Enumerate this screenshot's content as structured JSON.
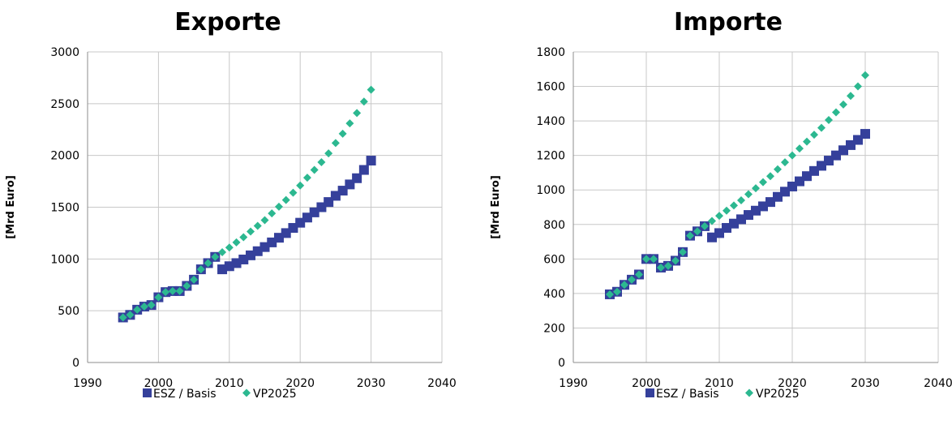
{
  "colors": {
    "esz": "#35409b",
    "vp": "#2cb890",
    "grid": "#c8c8c8",
    "axis": "#8c8c8c"
  },
  "chart_data": [
    {
      "type": "scatter",
      "title": "Exporte",
      "xlabel": "",
      "ylabel": "[Mrd Euro]",
      "xlim": [
        1990,
        2040
      ],
      "ylim": [
        0,
        3000
      ],
      "xticks": [
        1990,
        2000,
        2010,
        2020,
        2030,
        2040
      ],
      "yticks": [
        0,
        500,
        1000,
        1500,
        2000,
        2500,
        3000
      ],
      "grid": true,
      "legend": "bottom",
      "series": [
        {
          "name": "ESZ / Basis",
          "marker": "square",
          "x": [
            1995,
            1996,
            1997,
            1998,
            1999,
            2000,
            2001,
            2002,
            2003,
            2004,
            2005,
            2006,
            2007,
            2008,
            2009,
            2010,
            2011,
            2012,
            2013,
            2014,
            2015,
            2016,
            2017,
            2018,
            2019,
            2020,
            2021,
            2022,
            2023,
            2024,
            2025,
            2026,
            2027,
            2028,
            2029,
            2030
          ],
          "y": [
            435,
            460,
            510,
            540,
            555,
            630,
            680,
            690,
            690,
            740,
            800,
            900,
            960,
            1020,
            900,
            930,
            960,
            995,
            1035,
            1075,
            1115,
            1160,
            1205,
            1250,
            1300,
            1350,
            1400,
            1450,
            1500,
            1550,
            1610,
            1660,
            1720,
            1780,
            1860,
            1950
          ]
        },
        {
          "name": "VP2025",
          "marker": "diamond",
          "x": [
            1995,
            1996,
            1997,
            1998,
            1999,
            2000,
            2001,
            2002,
            2003,
            2004,
            2005,
            2006,
            2007,
            2008,
            2009,
            2010,
            2011,
            2012,
            2013,
            2014,
            2015,
            2016,
            2017,
            2018,
            2019,
            2020,
            2021,
            2022,
            2023,
            2024,
            2025,
            2026,
            2027,
            2028,
            2029,
            2030
          ],
          "y": [
            435,
            460,
            510,
            540,
            555,
            630,
            680,
            690,
            690,
            740,
            800,
            900,
            960,
            1020,
            1065,
            1110,
            1160,
            1210,
            1265,
            1320,
            1375,
            1440,
            1505,
            1570,
            1640,
            1710,
            1785,
            1860,
            1935,
            2020,
            2120,
            2210,
            2310,
            2410,
            2520,
            2635
          ]
        }
      ]
    },
    {
      "type": "scatter",
      "title": "Importe",
      "xlabel": "",
      "ylabel": "[Mrd Euro]",
      "xlim": [
        1990,
        2040
      ],
      "ylim": [
        0,
        1800
      ],
      "xticks": [
        1990,
        2000,
        2010,
        2020,
        2030,
        2040
      ],
      "yticks": [
        0,
        200,
        400,
        600,
        800,
        1000,
        1200,
        1400,
        1600,
        1800
      ],
      "grid": true,
      "legend": "bottom",
      "series": [
        {
          "name": "ESZ / Basis",
          "marker": "square",
          "x": [
            1995,
            1996,
            1997,
            1998,
            1999,
            2000,
            2001,
            2002,
            2003,
            2004,
            2005,
            2006,
            2007,
            2008,
            2009,
            2010,
            2011,
            2012,
            2013,
            2014,
            2015,
            2016,
            2017,
            2018,
            2019,
            2020,
            2021,
            2022,
            2023,
            2024,
            2025,
            2026,
            2027,
            2028,
            2029,
            2030
          ],
          "y": [
            395,
            410,
            450,
            480,
            510,
            600,
            600,
            550,
            560,
            590,
            640,
            735,
            760,
            790,
            725,
            750,
            780,
            805,
            830,
            855,
            880,
            905,
            930,
            960,
            990,
            1020,
            1050,
            1080,
            1110,
            1140,
            1170,
            1200,
            1230,
            1260,
            1290,
            1325
          ]
        },
        {
          "name": "VP2025",
          "marker": "diamond",
          "x": [
            1995,
            1996,
            1997,
            1998,
            1999,
            2000,
            2001,
            2002,
            2003,
            2004,
            2005,
            2006,
            2007,
            2008,
            2009,
            2010,
            2011,
            2012,
            2013,
            2014,
            2015,
            2016,
            2017,
            2018,
            2019,
            2020,
            2021,
            2022,
            2023,
            2024,
            2025,
            2026,
            2027,
            2028,
            2029,
            2030
          ],
          "y": [
            395,
            410,
            450,
            480,
            510,
            600,
            600,
            550,
            560,
            590,
            640,
            735,
            760,
            790,
            820,
            850,
            880,
            910,
            940,
            975,
            1010,
            1045,
            1080,
            1120,
            1160,
            1200,
            1240,
            1280,
            1320,
            1360,
            1405,
            1450,
            1495,
            1545,
            1600,
            1665
          ]
        }
      ]
    }
  ]
}
